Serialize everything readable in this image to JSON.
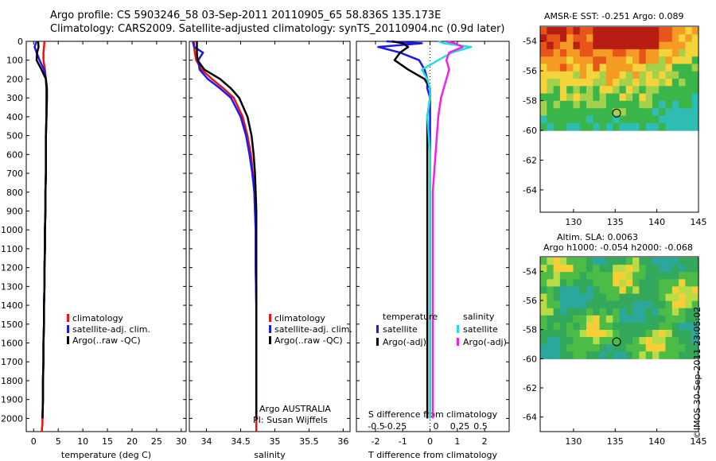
{
  "header": {
    "line1": "Argo profile: CS 5903246_58 03-Sep-2011 20110905_65 58.836S 135.173E",
    "line2": "Climatology: CARS2009. Satellite-adjusted climatology: synTS_20110904.nc (0.9d later)"
  },
  "colors": {
    "climatology": "#ee1111",
    "satellite": "#1a1aee",
    "argo": "#000000",
    "satellite_s": "#22dddd",
    "argo_s": "#ee22ee"
  },
  "depth_axis": {
    "ticks": [
      0,
      100,
      200,
      300,
      400,
      500,
      600,
      700,
      800,
      900,
      1000,
      1100,
      1200,
      1300,
      1400,
      1500,
      1600,
      1700,
      1800,
      1900,
      2000
    ],
    "range": [
      0,
      2070
    ],
    "inverted": true
  },
  "chart_data": [
    {
      "id": "temperature",
      "type": "line",
      "xlabel": "temperature (deg C)",
      "xlim": [
        -1.5,
        31
      ],
      "xticks": [
        0,
        5,
        10,
        15,
        20,
        25,
        30
      ],
      "legend": [
        "climatology",
        "satellite-adj. clim.",
        "Argo(..raw -QC)"
      ],
      "series": [
        {
          "name": "climatology",
          "color_key": "climatology",
          "x": [
            2.2,
            2.1,
            2.0,
            2.0,
            2.3,
            2.5,
            2.6,
            2.6,
            2.6,
            2.5,
            2.5,
            2.5,
            2.4,
            2.4,
            2.3,
            2.3,
            2.2,
            2.2,
            2.1,
            2.1,
            2.0,
            2.0,
            1.9,
            1.9,
            1.8,
            1.8,
            1.7,
            1.7,
            1.6
          ],
          "y": [
            0,
            30,
            60,
            100,
            150,
            200,
            250,
            300,
            400,
            500,
            600,
            700,
            800,
            900,
            1000,
            1100,
            1200,
            1300,
            1400,
            1500,
            1600,
            1700,
            1800,
            1900,
            2000,
            2030,
            2050,
            2060,
            2070
          ]
        },
        {
          "name": "satellite-adj. clim.",
          "color_key": "satellite",
          "x": [
            0.6,
            0.2,
            0.6,
            1.2,
            2.1,
            2.5,
            2.6,
            2.6,
            2.6,
            2.5,
            2.5,
            2.5,
            2.4,
            2.4,
            2.3,
            2.3,
            2.2,
            2.2,
            2.1,
            2.1,
            2.0,
            2.0,
            1.9,
            1.9,
            1.8
          ],
          "y": [
            0,
            30,
            60,
            100,
            150,
            200,
            250,
            300,
            400,
            500,
            600,
            700,
            800,
            900,
            1000,
            1100,
            1200,
            1300,
            1400,
            1500,
            1600,
            1700,
            1800,
            1900,
            2000
          ]
        },
        {
          "name": "Argo(..raw -QC)",
          "color_key": "argo",
          "x": [
            0.9,
            1.0,
            0.7,
            0.6,
            1.6,
            2.5,
            2.7,
            2.7,
            2.6,
            2.5,
            2.5,
            2.5,
            2.4,
            2.4,
            2.3,
            2.3,
            2.2,
            2.2,
            2.1,
            2.1,
            2.0,
            2.0,
            1.9,
            1.9,
            1.8
          ],
          "y": [
            0,
            30,
            60,
            100,
            150,
            200,
            250,
            300,
            400,
            500,
            600,
            700,
            800,
            900,
            1000,
            1100,
            1200,
            1300,
            1400,
            1500,
            1600,
            1700,
            1800,
            1900,
            2000
          ]
        }
      ]
    },
    {
      "id": "salinity",
      "type": "line",
      "xlabel": "salinity",
      "xlim": [
        33.75,
        36.1
      ],
      "xticks": [
        34,
        34.5,
        35,
        35.5,
        36
      ],
      "legend": [
        "climatology",
        "satellite-adj. clim.",
        "Argo(..raw -QC)"
      ],
      "annotation": [
        "Argo AUSTRALIA",
        "PI: Susan Wijffels"
      ],
      "series": [
        {
          "name": "climatology",
          "color_key": "climatology",
          "x": [
            33.82,
            33.82,
            33.83,
            33.85,
            33.93,
            34.08,
            34.25,
            34.4,
            34.53,
            34.6,
            34.65,
            34.68,
            34.7,
            34.71,
            34.72,
            34.72,
            34.73,
            34.73,
            34.73,
            34.73,
            34.73,
            34.73
          ],
          "y": [
            0,
            30,
            60,
            100,
            150,
            200,
            250,
            300,
            400,
            500,
            600,
            700,
            800,
            900,
            1000,
            1200,
            1400,
            1600,
            1800,
            1900,
            2000,
            2070
          ]
        },
        {
          "name": "satellite-adj. clim.",
          "color_key": "satellite",
          "x": [
            33.8,
            33.82,
            33.95,
            33.88,
            33.9,
            34.02,
            34.2,
            34.36,
            34.5,
            34.58,
            34.63,
            34.67,
            34.7,
            34.71,
            34.72,
            34.72,
            34.73,
            34.73,
            34.73,
            34.73,
            34.73
          ],
          "y": [
            0,
            30,
            60,
            100,
            150,
            200,
            250,
            300,
            400,
            500,
            600,
            700,
            800,
            900,
            1000,
            1200,
            1400,
            1600,
            1800,
            1900,
            2000
          ]
        },
        {
          "name": "Argo(..raw -QC)",
          "color_key": "argo",
          "x": [
            33.86,
            33.86,
            33.86,
            33.87,
            33.97,
            34.2,
            34.36,
            34.48,
            34.6,
            34.66,
            34.69,
            34.71,
            34.72,
            34.73,
            34.73,
            34.73,
            34.73,
            34.73,
            34.73,
            34.73,
            34.73
          ],
          "y": [
            0,
            30,
            60,
            100,
            150,
            200,
            250,
            300,
            400,
            500,
            600,
            700,
            800,
            900,
            1000,
            1200,
            1400,
            1600,
            1800,
            1900,
            2000
          ]
        }
      ]
    },
    {
      "id": "differences",
      "type": "line",
      "xlabel": "T difference from climatology",
      "xlabel_top": "S difference from climatology",
      "xlim": [
        -2.7,
        2.9
      ],
      "xticks": [
        -2,
        -1,
        0,
        1,
        2
      ],
      "s_ticks": [
        -0.5,
        -0.25,
        0,
        0.25,
        0.5
      ],
      "legend_left_title": "temperature",
      "legend_right_title": "salinity",
      "legend_left": [
        "satellite",
        "Argo(-adj)"
      ],
      "legend_right": [
        "satellite",
        "Argo(-adj)"
      ],
      "series": [
        {
          "name": "satellite",
          "group": "temperature",
          "color_key": "satellite",
          "x": [
            -1.6,
            -0.3,
            -1.9,
            -1.1,
            -0.4,
            -0.2,
            -0.1,
            -0.1,
            0.0,
            0.0,
            0.0,
            0.0,
            0.0,
            0.0,
            0.0,
            0.0,
            0.0,
            0.0
          ],
          "y": [
            0,
            10,
            30,
            60,
            100,
            150,
            200,
            250,
            300,
            400,
            600,
            800,
            1000,
            1200,
            1400,
            1600,
            1800,
            2000
          ]
        },
        {
          "name": "Argo(-adj)",
          "group": "temperature",
          "color_key": "argo",
          "x": [
            -1.4,
            -1.0,
            -0.8,
            -1.1,
            -1.3,
            -0.8,
            -0.2,
            0.0,
            0.0,
            -0.1,
            -0.1,
            -0.1,
            -0.1,
            -0.1,
            -0.1,
            -0.1,
            -0.1,
            -0.1
          ],
          "y": [
            0,
            10,
            30,
            60,
            100,
            150,
            200,
            250,
            300,
            400,
            600,
            800,
            1000,
            1200,
            1400,
            1600,
            1800,
            2000
          ]
        },
        {
          "name": "satellite",
          "group": "salinity",
          "color_key": "satellite_s",
          "x": [
            0.3,
            0.5,
            1.5,
            0.8,
            0.3,
            -0.3,
            -0.1,
            0.0,
            0.0,
            -0.1,
            0.0,
            0.0,
            0.0,
            0.0,
            0.0,
            0.0,
            0.0,
            0.0
          ],
          "y": [
            0,
            10,
            30,
            60,
            100,
            150,
            200,
            250,
            300,
            400,
            600,
            800,
            1000,
            1200,
            1400,
            1600,
            1800,
            2000
          ]
        },
        {
          "name": "Argo(-adj)",
          "group": "salinity",
          "color_key": "argo_s",
          "x": [
            0.6,
            0.9,
            1.2,
            0.7,
            0.6,
            0.7,
            0.6,
            0.5,
            0.4,
            0.3,
            0.2,
            0.1,
            0.1,
            0.1,
            0.1,
            0.1,
            0.1,
            0.1
          ],
          "y": [
            0,
            10,
            30,
            60,
            100,
            150,
            200,
            250,
            300,
            400,
            600,
            800,
            1000,
            1200,
            1400,
            1600,
            1800,
            2000
          ]
        }
      ]
    },
    {
      "id": "map_sst",
      "type": "heatmap",
      "title": "AMSR-E SST: -0.251  Argo: 0.089",
      "xlim": [
        126,
        145
      ],
      "ylim": [
        -65.5,
        -53
      ],
      "xticks": [
        130,
        135,
        140,
        145
      ],
      "yticks": [
        -54,
        -56,
        -58,
        -60,
        -62,
        -64
      ],
      "data_extent_lat": [
        -60,
        -53
      ],
      "marker": {
        "lon": 135.173,
        "lat": -58.836
      }
    },
    {
      "id": "map_sla",
      "type": "heatmap",
      "title": "Altim. SLA: 0.0063",
      "subtitle": "Argo h1000: -0.054 h2000: -0.068",
      "xlim": [
        126,
        145
      ],
      "ylim": [
        -65,
        -53
      ],
      "xticks": [
        130,
        135,
        140,
        145
      ],
      "yticks": [
        -54,
        -56,
        -58,
        -60,
        -62,
        -64
      ],
      "data_extent_lat": [
        -60,
        -53
      ],
      "marker": {
        "lon": 135.173,
        "lat": -58.836
      }
    }
  ],
  "footer": {
    "credit": "©IMOS 30-Sep-2011 23:05:02"
  }
}
